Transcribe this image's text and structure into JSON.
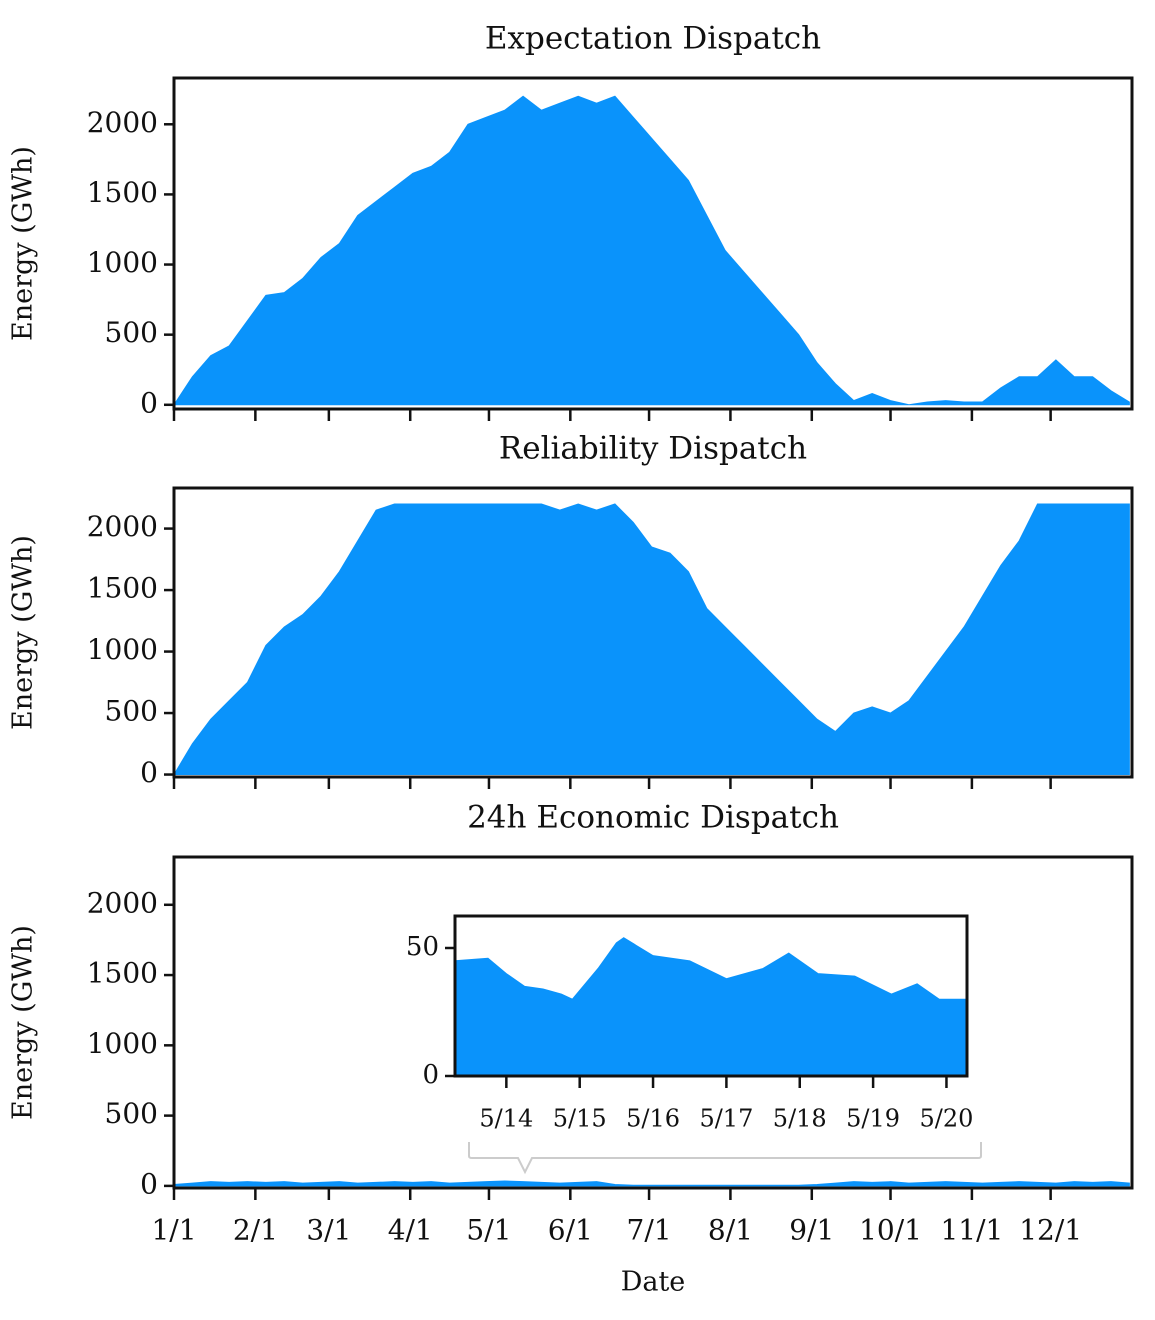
{
  "chart_data": [
    {
      "type": "area",
      "title": "Expectation Dispatch",
      "ylabel": "Energy (GWh)",
      "color": "#0a93fb",
      "xlim": [
        0,
        365
      ],
      "ylim": [
        -30,
        2330
      ],
      "yticks": [
        0,
        500,
        1000,
        1500,
        2000
      ],
      "xticks": [
        0,
        31,
        59,
        90,
        120,
        151,
        181,
        212,
        243,
        273,
        304,
        334
      ],
      "x": [
        0,
        7,
        14,
        21,
        28,
        35,
        42,
        49,
        56,
        63,
        70,
        77,
        84,
        91,
        98,
        105,
        112,
        119,
        126,
        133,
        140,
        147,
        154,
        161,
        168,
        175,
        182,
        189,
        196,
        203,
        210,
        217,
        224,
        231,
        238,
        245,
        252,
        259,
        266,
        273,
        280,
        287,
        294,
        301,
        308,
        315,
        322,
        329,
        336,
        343,
        350,
        357,
        364
      ],
      "values": [
        0,
        200,
        350,
        420,
        600,
        780,
        800,
        900,
        1050,
        1150,
        1350,
        1450,
        1550,
        1650,
        1700,
        1800,
        2000,
        2050,
        2100,
        2200,
        2100,
        2150,
        2200,
        2150,
        2200,
        2050,
        1900,
        1750,
        1600,
        1350,
        1100,
        950,
        800,
        650,
        500,
        300,
        150,
        30,
        80,
        30,
        0,
        20,
        30,
        20,
        20,
        120,
        200,
        200,
        320,
        200,
        200,
        100,
        20
      ]
    },
    {
      "type": "area",
      "title": "Reliability Dispatch",
      "ylabel": "Energy (GWh)",
      "color": "#0a93fb",
      "xlim": [
        0,
        365
      ],
      "ylim": [
        -20,
        2330
      ],
      "yticks": [
        0,
        500,
        1000,
        1500,
        2000
      ],
      "xticks": [
        0,
        31,
        59,
        90,
        120,
        151,
        181,
        212,
        243,
        273,
        304,
        334
      ],
      "x": [
        0,
        7,
        14,
        21,
        28,
        35,
        42,
        49,
        56,
        63,
        70,
        77,
        84,
        91,
        98,
        105,
        112,
        119,
        126,
        133,
        140,
        147,
        154,
        161,
        168,
        175,
        182,
        189,
        196,
        203,
        210,
        217,
        224,
        231,
        238,
        245,
        252,
        259,
        266,
        273,
        280,
        287,
        294,
        301,
        308,
        315,
        322,
        329,
        336,
        343,
        350,
        357,
        364
      ],
      "values": [
        0,
        250,
        450,
        600,
        750,
        1050,
        1200,
        1300,
        1450,
        1650,
        1900,
        2150,
        2200,
        2200,
        2200,
        2200,
        2200,
        2200,
        2200,
        2200,
        2200,
        2150,
        2200,
        2150,
        2200,
        2050,
        1850,
        1800,
        1650,
        1350,
        1200,
        1050,
        900,
        750,
        600,
        450,
        350,
        500,
        550,
        500,
        600,
        800,
        1000,
        1200,
        1450,
        1700,
        1900,
        2200,
        2200,
        2200,
        2200,
        2200,
        2200
      ]
    },
    {
      "type": "area",
      "title": "24h Economic Dispatch",
      "ylabel": "Energy (GWh)",
      "xlabel": "Date",
      "color": "#0a93fb",
      "xlim": [
        0,
        365
      ],
      "ylim": [
        -15,
        2340
      ],
      "yticks": [
        0,
        500,
        1000,
        1500,
        2000
      ],
      "xticks": [
        {
          "value": 0,
          "label": "1/1"
        },
        {
          "value": 31,
          "label": "2/1"
        },
        {
          "value": 59,
          "label": "3/1"
        },
        {
          "value": 90,
          "label": "4/1"
        },
        {
          "value": 120,
          "label": "5/1"
        },
        {
          "value": 151,
          "label": "6/1"
        },
        {
          "value": 181,
          "label": "7/1"
        },
        {
          "value": 212,
          "label": "8/1"
        },
        {
          "value": 243,
          "label": "9/1"
        },
        {
          "value": 273,
          "label": "10/1"
        },
        {
          "value": 304,
          "label": "11/1"
        },
        {
          "value": 334,
          "label": "12/1"
        }
      ],
      "x": [
        0,
        7,
        14,
        21,
        28,
        35,
        42,
        49,
        56,
        63,
        70,
        77,
        84,
        91,
        98,
        105,
        112,
        119,
        126,
        133,
        140,
        147,
        154,
        161,
        168,
        175,
        182,
        189,
        196,
        203,
        210,
        217,
        224,
        231,
        238,
        245,
        252,
        259,
        266,
        273,
        280,
        287,
        294,
        301,
        308,
        315,
        322,
        329,
        336,
        343,
        350,
        357,
        364
      ],
      "values": [
        10,
        20,
        30,
        25,
        30,
        25,
        30,
        20,
        25,
        30,
        20,
        25,
        30,
        25,
        30,
        20,
        25,
        30,
        35,
        30,
        25,
        20,
        25,
        30,
        10,
        5,
        5,
        5,
        5,
        5,
        5,
        5,
        5,
        5,
        5,
        10,
        20,
        30,
        25,
        30,
        20,
        25,
        30,
        25,
        20,
        25,
        30,
        25,
        20,
        30,
        25,
        30,
        20
      ]
    },
    {
      "type": "area",
      "color": "#0a93fb",
      "xlim": [
        -0.7,
        6.28
      ],
      "ylim": [
        0,
        62.5
      ],
      "yticks": [
        0,
        50
      ],
      "xticks": [
        {
          "value": 0,
          "label": "5/14"
        },
        {
          "value": 1,
          "label": "5/15"
        },
        {
          "value": 2,
          "label": "5/16"
        },
        {
          "value": 3,
          "label": "5/17"
        },
        {
          "value": 4,
          "label": "5/18"
        },
        {
          "value": 5,
          "label": "5/19"
        },
        {
          "value": 6,
          "label": "5/20"
        }
      ],
      "x": [
        -0.7,
        -0.25,
        0,
        0.25,
        0.5,
        0.75,
        0.9,
        1.25,
        1.5,
        1.6,
        2,
        2.5,
        3,
        3.5,
        3.85,
        4.25,
        4.75,
        5.25,
        5.6,
        5.9,
        6.28
      ],
      "values": [
        45,
        46,
        40,
        35,
        34,
        32,
        30,
        42,
        52,
        54,
        47,
        45,
        38,
        42,
        48,
        40,
        39,
        32,
        36,
        30,
        30
      ]
    }
  ]
}
